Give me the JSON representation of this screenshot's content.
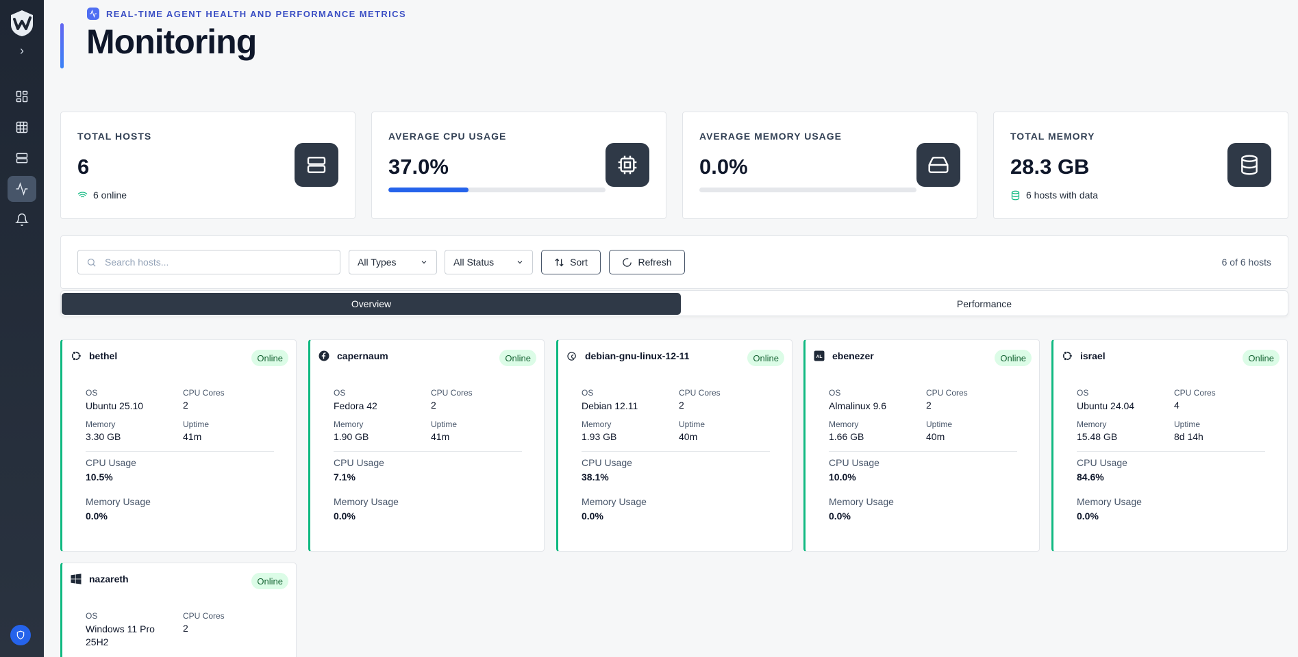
{
  "header": {
    "subtitle": "REAL-TIME AGENT HEALTH AND PERFORMANCE METRICS",
    "title": "Monitoring"
  },
  "sidebar": {
    "items": [
      {
        "name": "dashboard",
        "icon": "grid-icon"
      },
      {
        "name": "table",
        "icon": "table-icon"
      },
      {
        "name": "servers",
        "icon": "server-icon"
      },
      {
        "name": "monitoring",
        "icon": "activity-icon",
        "active": true
      },
      {
        "name": "alerts",
        "icon": "bell-icon"
      }
    ]
  },
  "stats": [
    {
      "label": "TOTAL HOSTS",
      "value": "6",
      "sub": "6 online",
      "icon": "server-icon"
    },
    {
      "label": "AVERAGE CPU USAGE",
      "value": "37.0%",
      "progress": 0.37,
      "icon": "cpu-icon"
    },
    {
      "label": "AVERAGE MEMORY USAGE",
      "value": "0.0%",
      "progress": 0.0,
      "icon": "hard-drive-icon"
    },
    {
      "label": "TOTAL MEMORY",
      "value": "28.3 GB",
      "sub": "6 hosts with data",
      "icon": "database-icon"
    }
  ],
  "toolbar": {
    "search_placeholder": "Search hosts...",
    "type_filter": "All Types",
    "status_filter": "All Status",
    "sort_label": "Sort",
    "refresh_label": "Refresh",
    "count": "6 of 6 hosts"
  },
  "tabs": [
    {
      "label": "Overview",
      "active": true
    },
    {
      "label": "Performance",
      "active": false
    }
  ],
  "labels": {
    "os": "OS",
    "cpu_cores": "CPU Cores",
    "memory": "Memory",
    "uptime": "Uptime",
    "cpu_usage": "CPU Usage",
    "memory_usage": "Memory Usage"
  },
  "hosts": [
    {
      "name": "bethel",
      "status": "Online",
      "os": "Ubuntu 25.10",
      "cpu_cores": "2",
      "memory": "3.30 GB",
      "uptime": "41m",
      "cpu_usage": "10.5%",
      "memory_usage": "0.0%",
      "icon": "ubuntu-icon"
    },
    {
      "name": "capernaum",
      "status": "Online",
      "os": "Fedora 42",
      "cpu_cores": "2",
      "memory": "1.90 GB",
      "uptime": "41m",
      "cpu_usage": "7.1%",
      "memory_usage": "0.0%",
      "icon": "fedora-icon"
    },
    {
      "name": "debian-gnu-linux-12-11",
      "status": "Online",
      "os": "Debian 12.11",
      "cpu_cores": "2",
      "memory": "1.93 GB",
      "uptime": "40m",
      "cpu_usage": "38.1%",
      "memory_usage": "0.0%",
      "icon": "debian-icon"
    },
    {
      "name": "ebenezer",
      "status": "Online",
      "os": "Almalinux 9.6",
      "cpu_cores": "2",
      "memory": "1.66 GB",
      "uptime": "40m",
      "cpu_usage": "10.0%",
      "memory_usage": "0.0%",
      "icon": "almalinux-icon",
      "icon_text": "AL"
    },
    {
      "name": "israel",
      "status": "Online",
      "os": "Ubuntu 24.04",
      "cpu_cores": "4",
      "memory": "15.48 GB",
      "uptime": "8d 14h",
      "cpu_usage": "84.6%",
      "memory_usage": "0.0%",
      "icon": "ubuntu-icon"
    },
    {
      "name": "nazareth",
      "status": "Online",
      "os": "Windows 11 Pro 25H2",
      "cpu_cores": "2",
      "icon": "windows-icon"
    }
  ]
}
